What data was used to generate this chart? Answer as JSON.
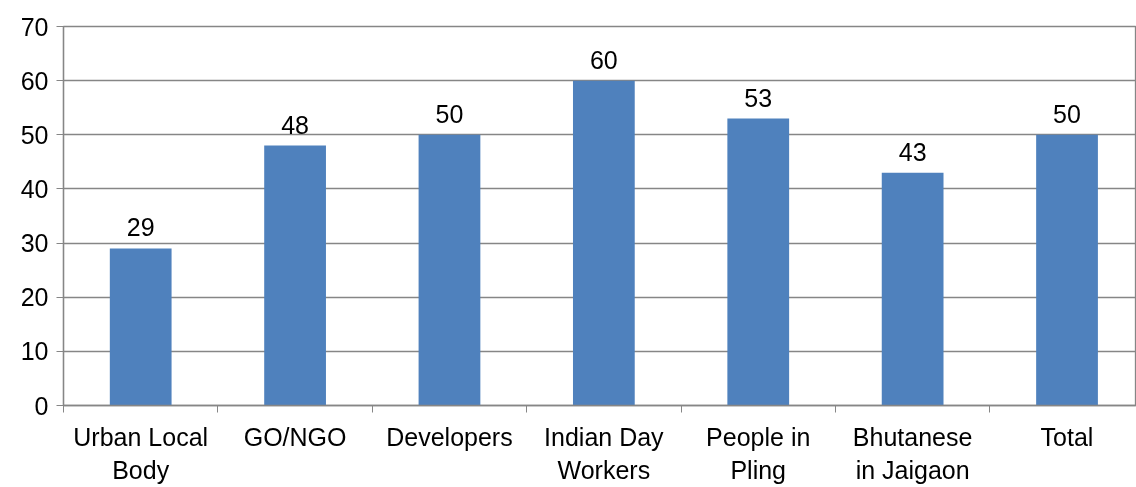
{
  "chart_data": {
    "type": "bar",
    "categories": [
      "Urban Local\nBody",
      "GO/NGO",
      "Developers",
      "Indian Day\nWorkers",
      "People in\nPling",
      "Bhutanese\nin Jaigaon",
      "Total"
    ],
    "values": [
      29,
      48,
      50,
      60,
      53,
      43,
      50
    ],
    "color": "#4f81bd",
    "ylim": [
      0,
      70
    ],
    "yticks": [
      0,
      10,
      20,
      30,
      40,
      50,
      60,
      70
    ],
    "grid": "y",
    "data_labels": true
  }
}
